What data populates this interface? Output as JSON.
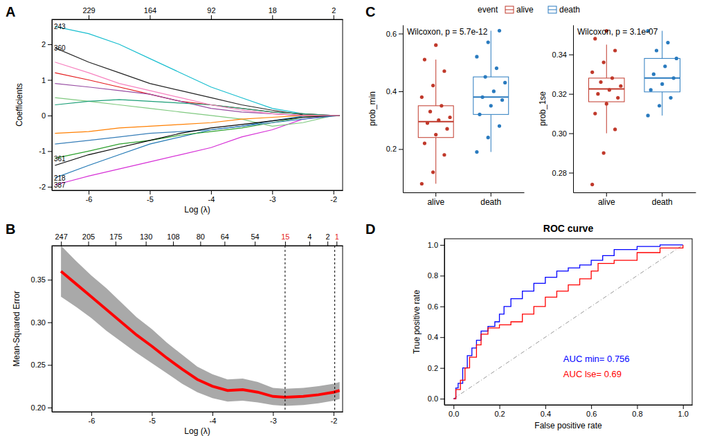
{
  "chart_data": [
    {
      "type": "line",
      "panel": "A",
      "x_label": "Log (λ)",
      "y_label": "Coefficients",
      "xlim": [
        -6.6,
        -1.85
      ],
      "ylim": [
        -2.1,
        2.7
      ],
      "xticks": [
        -6,
        -5,
        -4,
        -3,
        -2
      ],
      "yticks": [
        -2,
        -1,
        0,
        1,
        2
      ],
      "top_xticks": [
        {
          "value": -6,
          "label": "229"
        },
        {
          "value": -5,
          "label": "164"
        },
        {
          "value": -4,
          "label": "92"
        },
        {
          "value": -3,
          "label": "18"
        },
        {
          "value": -2,
          "label": "2"
        }
      ],
      "x": [
        -6.55,
        -6,
        -5.5,
        -5,
        -4.5,
        -4,
        -3.5,
        -3,
        -2.5,
        -2,
        -1.9
      ],
      "series": [
        {
          "name": "243",
          "color": "#17becf",
          "values": [
            2.5,
            2.3,
            2.0,
            1.6,
            1.2,
            0.8,
            0.5,
            0.2,
            0.05,
            0,
            0
          ]
        },
        {
          "name": "360",
          "color": "#222222",
          "values": [
            1.9,
            1.5,
            1.2,
            0.9,
            0.7,
            0.5,
            0.3,
            0.15,
            0.02,
            0,
            0
          ]
        },
        {
          "name": "218",
          "color": "#1f77b4",
          "values": [
            -1.75,
            -1.4,
            -1.1,
            -0.8,
            -0.6,
            -0.4,
            -0.3,
            -0.15,
            -0.02,
            0,
            0
          ]
        },
        {
          "name": "387",
          "color": "#d62fd6",
          "values": [
            -1.95,
            -1.7,
            -1.5,
            -1.3,
            -1.1,
            -0.9,
            -0.6,
            -0.4,
            -0.1,
            0,
            0
          ]
        },
        {
          "name": "361",
          "color": "#2ca02c",
          "values": [
            -1.2,
            -1.0,
            -0.8,
            -0.7,
            -0.55,
            -0.45,
            -0.35,
            -0.2,
            -0.05,
            0,
            0
          ]
        },
        {
          "color": "#7fc97f",
          "values": [
            0.5,
            0.4,
            0.3,
            0.2,
            0.1,
            0,
            -0.1,
            -0.3,
            -0.2,
            0,
            0
          ]
        },
        {
          "color": "#e41a1c",
          "values": [
            1.2,
            1.0,
            0.8,
            0.6,
            0.4,
            0.3,
            0.2,
            0.1,
            0.05,
            0,
            0
          ]
        },
        {
          "color": "#377eb8",
          "values": [
            -0.8,
            -0.7,
            -0.6,
            -0.5,
            -0.45,
            -0.4,
            -0.3,
            -0.2,
            -0.1,
            -0.02,
            0
          ]
        },
        {
          "color": "#984ea3",
          "values": [
            0.9,
            0.8,
            0.7,
            0.6,
            0.4,
            0.2,
            0.1,
            0.05,
            0,
            0,
            0
          ]
        },
        {
          "color": "#ff7f00",
          "values": [
            -0.5,
            -0.45,
            -0.35,
            -0.3,
            -0.25,
            -0.2,
            -0.1,
            -0.05,
            0,
            0,
            0
          ]
        },
        {
          "color": "#1b9e77",
          "values": [
            0.3,
            0.4,
            0.45,
            0.4,
            0.35,
            0.3,
            0.2,
            0.1,
            0.05,
            0,
            0
          ]
        },
        {
          "color": "#000000",
          "values": [
            -1.4,
            -1.1,
            -0.9,
            -0.7,
            -0.5,
            -0.35,
            -0.25,
            -0.15,
            -0.05,
            0,
            0
          ]
        },
        {
          "color": "#f781bf",
          "values": [
            1.5,
            1.2,
            0.9,
            0.7,
            0.5,
            0.3,
            0.15,
            0.05,
            0,
            0,
            0
          ]
        }
      ]
    },
    {
      "type": "line",
      "panel": "B",
      "x_label": "Log (λ)",
      "y_label": "Mean-Squared Error",
      "color": "#ff0000",
      "xlim": [
        -6.65,
        -1.85
      ],
      "ylim": [
        0.195,
        0.39
      ],
      "xticks": [
        -6,
        -5,
        -4,
        -3,
        -2
      ],
      "yticks": [
        {
          "value": 0.2,
          "label": "0.20"
        },
        0.25,
        {
          "value": 0.3,
          "label": "0.30"
        },
        0.35
      ],
      "top_xticks": [
        {
          "value": -6.5,
          "label": "247"
        },
        {
          "value": -6.05,
          "label": "205"
        },
        {
          "value": -5.6,
          "label": "175"
        },
        {
          "value": -5.1,
          "label": "130"
        },
        {
          "value": -4.65,
          "label": "108"
        },
        {
          "value": -4.2,
          "label": "80"
        },
        {
          "value": -3.8,
          "label": "64"
        },
        {
          "value": -3.3,
          "label": "54"
        },
        {
          "value": -2.8,
          "label": "15",
          "color": "#e41a1c"
        },
        {
          "value": -2.4,
          "label": "4"
        },
        {
          "value": -2.1,
          "label": "2"
        },
        {
          "value": -1.95,
          "label": "1",
          "color": "#e41a1c"
        }
      ],
      "vlines": [
        -2.8,
        -1.98
      ],
      "x": [
        -6.5,
        -6.25,
        -6,
        -5.75,
        -5.5,
        -5.25,
        -5,
        -4.75,
        -4.5,
        -4.25,
        -4,
        -3.75,
        -3.5,
        -3.25,
        -3,
        -2.8,
        -2.5,
        -2.25,
        -2,
        -1.9
      ],
      "values": [
        0.36,
        0.345,
        0.33,
        0.315,
        0.3,
        0.285,
        0.272,
        0.258,
        0.245,
        0.233,
        0.225,
        0.22,
        0.221,
        0.218,
        0.213,
        0.212,
        0.213,
        0.215,
        0.218,
        0.22
      ],
      "lower": [
        0.33,
        0.318,
        0.305,
        0.29,
        0.277,
        0.264,
        0.252,
        0.24,
        0.228,
        0.218,
        0.211,
        0.207,
        0.208,
        0.206,
        0.203,
        0.202,
        0.203,
        0.205,
        0.208,
        0.21
      ],
      "upper": [
        0.39,
        0.372,
        0.355,
        0.34,
        0.323,
        0.306,
        0.292,
        0.276,
        0.262,
        0.248,
        0.239,
        0.233,
        0.234,
        0.23,
        0.223,
        0.222,
        0.223,
        0.225,
        0.228,
        0.23
      ]
    },
    {
      "type": "box",
      "panel": "C",
      "title": "Wilcoxon, p = 5.7e-12",
      "y_label": "prob_min",
      "legend_title": "event",
      "legend": "top",
      "categories": [
        "alive",
        "death"
      ],
      "ylim": [
        0.05,
        0.63
      ],
      "yticks": [
        0.2,
        0.4,
        0.6
      ],
      "series": [
        {
          "name": "alive",
          "color": "#c0392b",
          "box": {
            "min": 0.08,
            "q1": 0.24,
            "median": 0.295,
            "q3": 0.35,
            "max": 0.51
          },
          "points": [
            0.08,
            0.12,
            0.18,
            0.22,
            0.25,
            0.27,
            0.29,
            0.3,
            0.31,
            0.33,
            0.35,
            0.38,
            0.42,
            0.47,
            0.51,
            0.56
          ]
        },
        {
          "name": "death",
          "color": "#2a7bbf",
          "box": {
            "min": 0.19,
            "q1": 0.32,
            "median": 0.38,
            "q3": 0.45,
            "max": 0.61
          },
          "points": [
            0.19,
            0.24,
            0.28,
            0.32,
            0.35,
            0.37,
            0.38,
            0.4,
            0.43,
            0.45,
            0.48,
            0.52,
            0.57,
            0.61
          ]
        }
      ]
    },
    {
      "type": "box",
      "title": "Wilcoxon, p = 3.1e-07",
      "y_label": "prob_1se",
      "categories": [
        "alive",
        "death"
      ],
      "ylim": [
        0.27,
        0.355
      ],
      "yticks": [
        0.28,
        {
          "value": 0.3,
          "label": "0.30"
        },
        0.32,
        0.34
      ],
      "series": [
        {
          "color": "#c0392b",
          "box": {
            "min": 0.3,
            "q1": 0.316,
            "median": 0.3225,
            "q3": 0.328,
            "max": 0.345
          },
          "points": [
            0.274,
            0.29,
            0.302,
            0.31,
            0.315,
            0.318,
            0.32,
            0.322,
            0.324,
            0.326,
            0.328,
            0.331,
            0.336,
            0.342,
            0.348,
            0.352
          ]
        },
        {
          "color": "#2a7bbf",
          "box": {
            "min": 0.309,
            "q1": 0.321,
            "median": 0.328,
            "q3": 0.338,
            "max": 0.352
          },
          "points": [
            0.309,
            0.314,
            0.318,
            0.322,
            0.325,
            0.328,
            0.33,
            0.334,
            0.338,
            0.342,
            0.346,
            0.352
          ]
        }
      ]
    },
    {
      "type": "line",
      "panel": "D",
      "title": "ROC curve",
      "x_label": "False positive rate",
      "y_label": "True positive rate",
      "line_style": "step",
      "xlim": [
        -0.04,
        1.04
      ],
      "ylim": [
        -0.04,
        1.04
      ],
      "xticks": [
        {
          "value": 0,
          "label": "0.0"
        },
        0.2,
        0.4,
        0.6,
        0.8,
        {
          "value": 1,
          "label": "1.0"
        }
      ],
      "yticks": [
        {
          "value": 0,
          "label": "0.0"
        },
        0.2,
        0.4,
        0.6,
        0.8,
        {
          "value": 1,
          "label": "1.0"
        }
      ],
      "series": [
        {
          "name": "AUC min= 0.756",
          "color": "#0000ff",
          "x": [
            0,
            0.01,
            0.02,
            0.04,
            0.06,
            0.08,
            0.1,
            0.12,
            0.15,
            0.18,
            0.2,
            0.22,
            0.25,
            0.3,
            0.35,
            0.4,
            0.45,
            0.5,
            0.55,
            0.6,
            0.65,
            0.7,
            0.8,
            0.9,
            1
          ],
          "values": [
            0,
            0.07,
            0.1,
            0.2,
            0.28,
            0.33,
            0.38,
            0.44,
            0.47,
            0.5,
            0.55,
            0.6,
            0.65,
            0.7,
            0.75,
            0.79,
            0.83,
            0.85,
            0.87,
            0.9,
            0.93,
            0.97,
            0.99,
            1,
            1
          ]
        },
        {
          "name": "AUC lse= 0.69",
          "color": "#ff0000",
          "x": [
            0,
            0.01,
            0.03,
            0.05,
            0.07,
            0.1,
            0.12,
            0.15,
            0.2,
            0.25,
            0.3,
            0.35,
            0.4,
            0.45,
            0.5,
            0.55,
            0.6,
            0.63,
            0.7,
            0.8,
            0.9,
            1
          ],
          "values": [
            0,
            0.06,
            0.12,
            0.2,
            0.27,
            0.35,
            0.42,
            0.46,
            0.48,
            0.5,
            0.55,
            0.6,
            0.66,
            0.7,
            0.74,
            0.78,
            0.83,
            0.88,
            0.9,
            0.95,
            0.98,
            1
          ]
        }
      ]
    }
  ]
}
